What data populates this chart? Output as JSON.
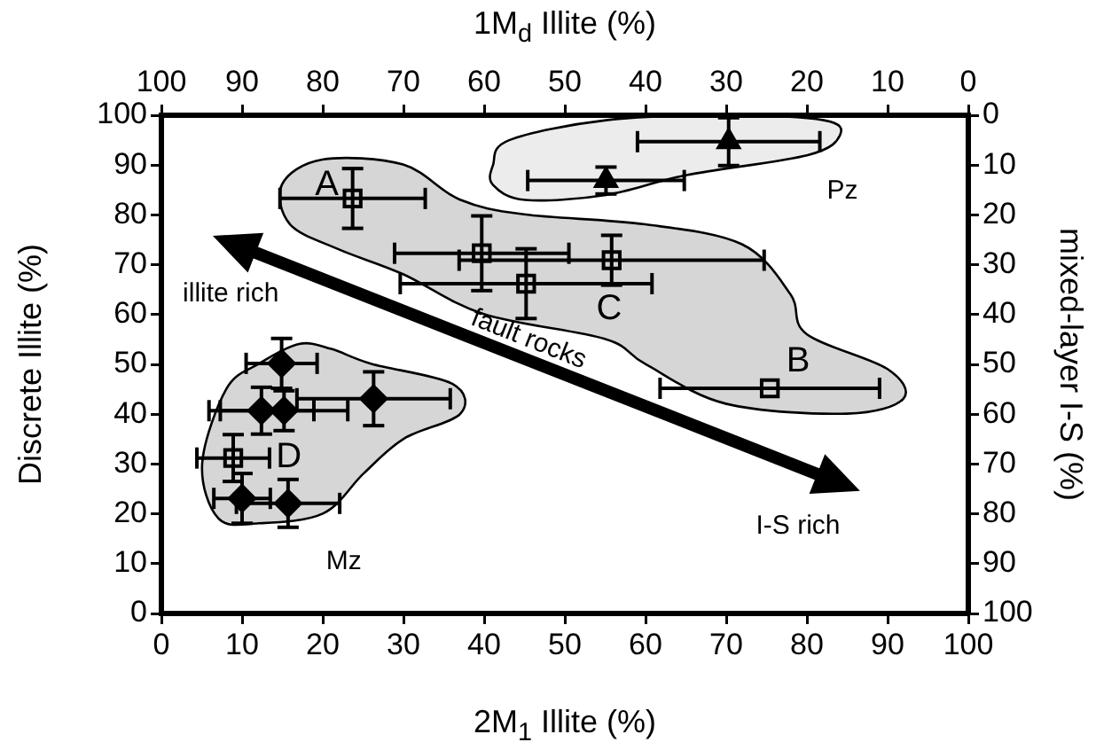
{
  "chart_data": {
    "type": "scatter",
    "xlabel": "2M$_{1}$ Illite (%)",
    "ylabel": "Discrete Illite (%)",
    "y2label": "mixed-layer I-S (%)",
    "x2label": "1M$_{d}$ Illite (%)",
    "xlim": [
      0,
      100
    ],
    "xticks": [
      0,
      10,
      20,
      30,
      40,
      50,
      60,
      70,
      80,
      90,
      100
    ],
    "ylim": [
      0,
      100
    ],
    "yticks": [
      0,
      10,
      20,
      30,
      40,
      50,
      60,
      70,
      80,
      90,
      100
    ],
    "x2lim": [
      100,
      0
    ],
    "x2ticks": [
      100,
      90,
      80,
      70,
      60,
      50,
      40,
      30,
      20,
      10,
      0
    ],
    "y2lim": [
      100,
      0
    ],
    "y2ticks": [
      100,
      90,
      80,
      70,
      60,
      50,
      40,
      30,
      20,
      10,
      0
    ],
    "grid": false,
    "legend": false,
    "series": [
      {
        "color": "#000000",
        "marker": "square",
        "x": [
          23.7,
          39.7,
          45.2,
          55.8,
          75.4,
          8.9
        ],
        "values": [
          83.3,
          72.3,
          66.2,
          70.9,
          45.2,
          31.2
        ],
        "xerrors": [
          9,
          10.8,
          15.6,
          18.9,
          13.6,
          4.5
        ],
        "errors": [
          6,
          7.5,
          7,
          5,
          null,
          4.7
        ]
      },
      {
        "color": "#000000",
        "marker": "triangle",
        "x": [
          70.3,
          55.1
        ],
        "values": [
          94.7,
          86.9
        ],
        "xerrors": [
          11.3,
          9.7
        ],
        "errors": [
          4.8,
          2.7
        ]
      },
      {
        "color": "#000000",
        "marker": "diamond",
        "x": [
          14.9,
          12.4,
          15.2,
          26.3,
          10.0,
          15.7
        ],
        "values": [
          50.2,
          40.7,
          40.7,
          43.1,
          23.1,
          22.1
        ],
        "xerrors": [
          4.4,
          6.5,
          7.9,
          9.5,
          3.5,
          6.4
        ],
        "errors": [
          5,
          4.7,
          4,
          5.4,
          5,
          4.8
        ]
      }
    ],
    "annotations": [
      "illite rich",
      "I-S rich",
      "fault rocks",
      "A",
      "B",
      "C",
      "D",
      "Pz",
      "Mz"
    ]
  }
}
